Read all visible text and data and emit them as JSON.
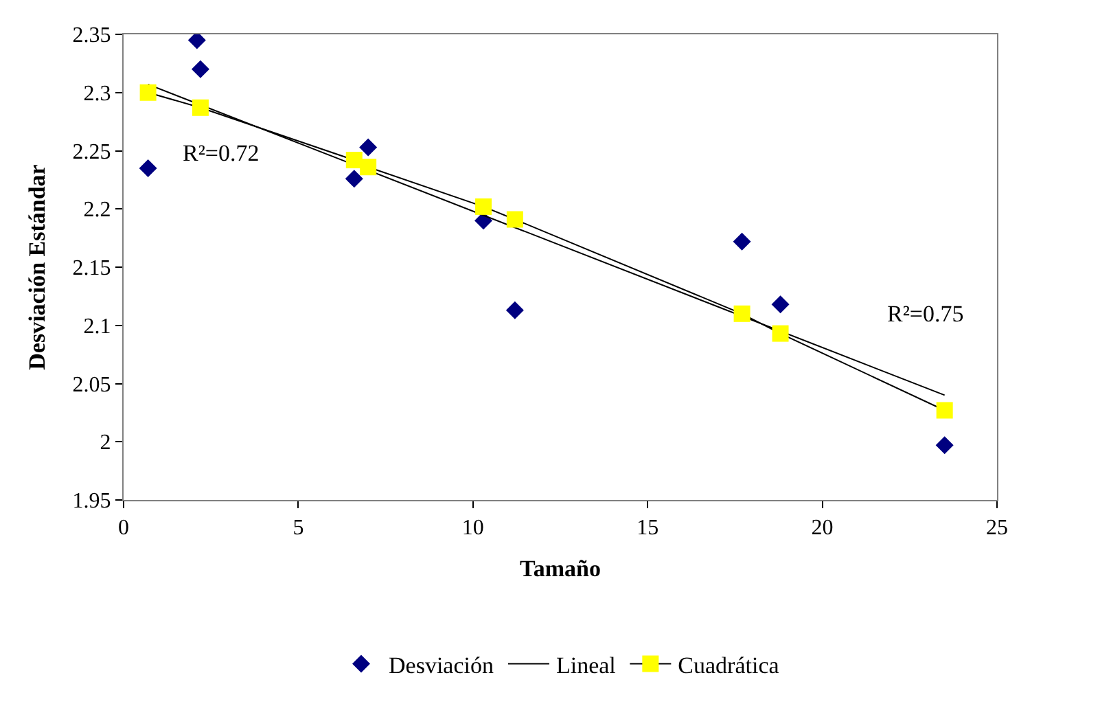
{
  "chart_data": {
    "type": "scatter",
    "xlabel": "Tamaño",
    "ylabel": "Desviación Estándar",
    "xlim": [
      0,
      25
    ],
    "xticks": [
      0,
      5,
      10,
      15,
      20,
      25
    ],
    "ylim": [
      1.95,
      2.35
    ],
    "yticks": [
      1.95,
      2,
      2.05,
      2.1,
      2.15,
      2.2,
      2.25,
      2.3,
      2.35
    ],
    "legend": "bottom",
    "series": [
      {
        "name": "Desviación",
        "marker": "diamond",
        "color": "#000080",
        "x": [
          0.7,
          2.1,
          2.2,
          6.6,
          7.0,
          10.3,
          11.2,
          17.7,
          18.8,
          23.5
        ],
        "values": [
          2.235,
          2.345,
          2.32,
          2.226,
          2.253,
          2.19,
          2.113,
          2.172,
          2.118,
          1.997
        ]
      },
      {
        "name": "Lineal",
        "type": "line",
        "marker": "none",
        "color": "#000000",
        "x": [
          0.7,
          23.5
        ],
        "values": [
          2.307,
          2.04
        ]
      },
      {
        "name": "Cuadrática",
        "type": "line",
        "marker": "square",
        "color": "#ffff00",
        "x": [
          0.7,
          2.2,
          6.6,
          7.0,
          10.3,
          11.2,
          17.7,
          18.8,
          23.5
        ],
        "values": [
          2.3,
          2.287,
          2.242,
          2.236,
          2.202,
          2.191,
          2.11,
          2.093,
          2.027
        ]
      }
    ],
    "annotations": [
      "R²=0.72",
      "R²=0.75"
    ]
  }
}
